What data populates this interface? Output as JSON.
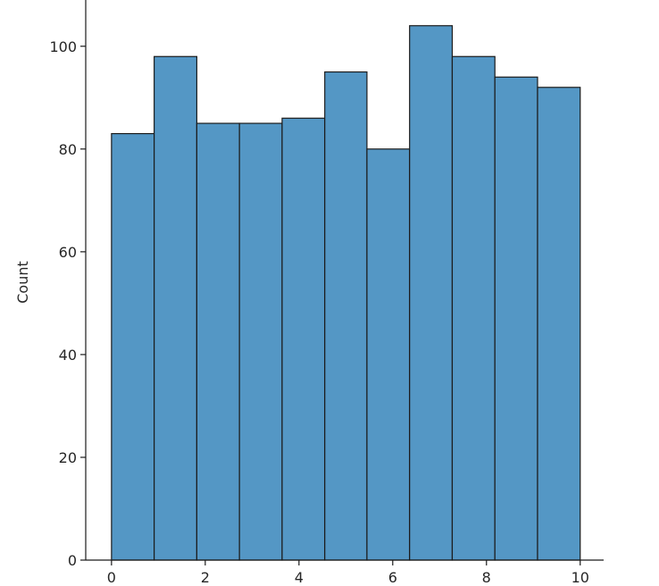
{
  "chart_data": {
    "type": "bar",
    "title": "",
    "xlabel": "",
    "ylabel": "Count",
    "bin_edges": [
      0,
      0.91,
      1.82,
      2.73,
      3.64,
      4.55,
      5.45,
      6.36,
      7.27,
      8.18,
      9.09,
      10
    ],
    "values": [
      83,
      98,
      85,
      85,
      86,
      95,
      80,
      104,
      98,
      94,
      92
    ],
    "xlim": [
      -0.55,
      10.5
    ],
    "ylim": [
      0,
      109
    ],
    "xticks": [
      0,
      2,
      4,
      6,
      8,
      10
    ],
    "yticks": [
      0,
      20,
      40,
      60,
      80,
      100
    ],
    "xtick_labels": [
      "0",
      "2",
      "4",
      "6",
      "8",
      "10"
    ],
    "ytick_labels": [
      "0",
      "20",
      "40",
      "60",
      "80",
      "100"
    ],
    "bar_color": "#5497c5",
    "edge_color": "#1b1b1b",
    "grid": false,
    "legend": "none"
  }
}
